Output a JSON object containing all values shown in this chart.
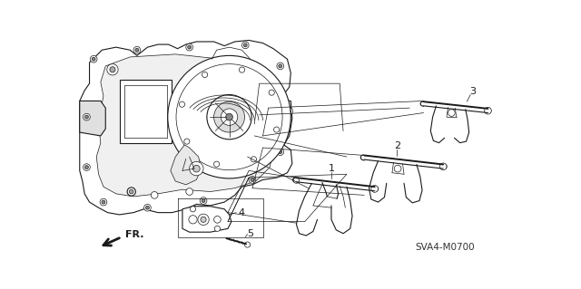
{
  "bg_color": "#ffffff",
  "line_color": "#1a1a1a",
  "diagram_code": "SVA4-M0700",
  "fr_label": "FR.",
  "figsize": [
    6.4,
    3.19
  ],
  "dpi": 100,
  "lw": 0.8,
  "lw_thick": 1.4,
  "lw_thin": 0.5,
  "gray": "#cccccc",
  "darkgray": "#555555"
}
